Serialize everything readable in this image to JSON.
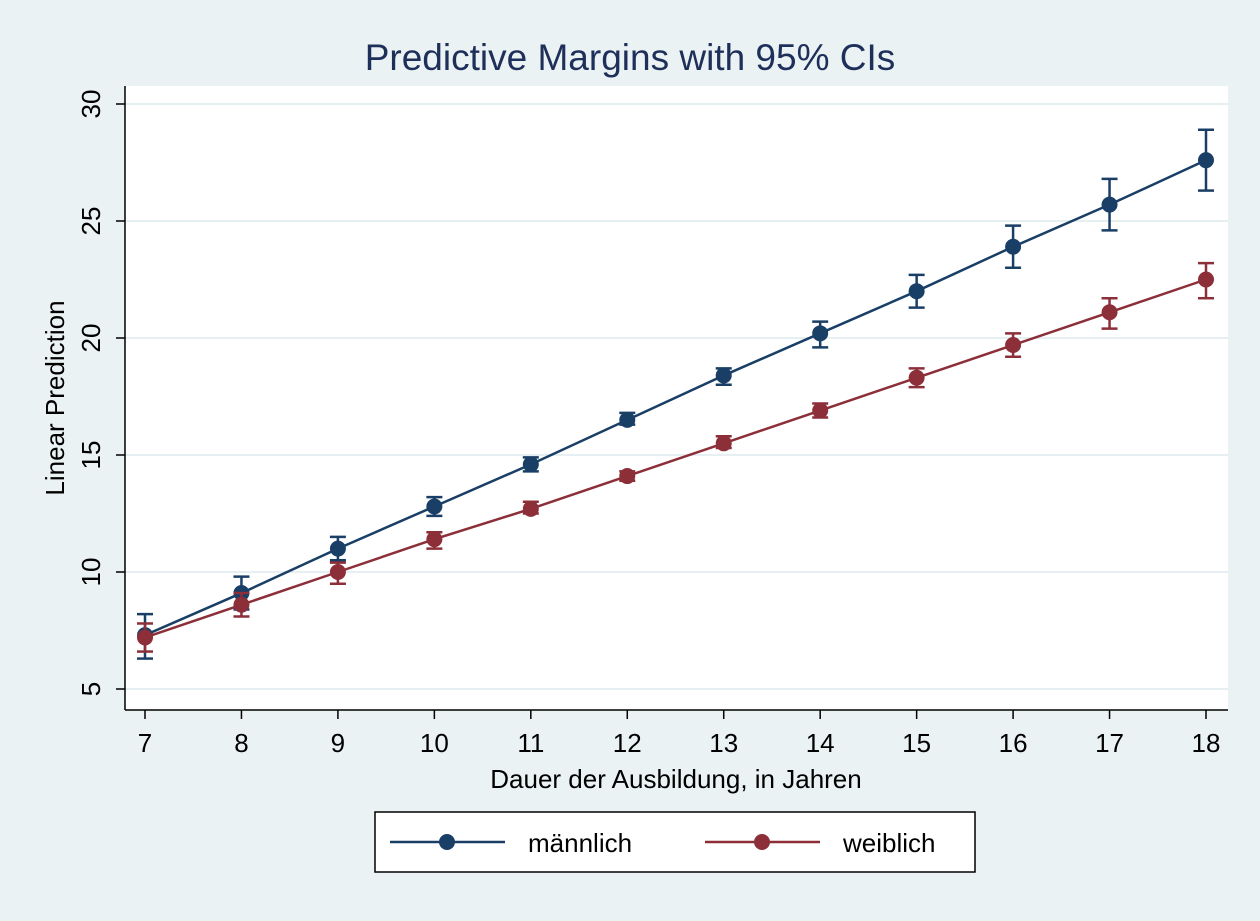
{
  "chart_data": {
    "type": "line",
    "title": "Predictive Margins with 95% CIs",
    "xlabel": "Dauer der Ausbildung, in Jahren",
    "ylabel": "Linear Prediction",
    "x": [
      7,
      8,
      9,
      10,
      11,
      12,
      13,
      14,
      15,
      16,
      17,
      18
    ],
    "xlim": [
      7,
      18
    ],
    "ylim": [
      5,
      30
    ],
    "yticks": [
      5,
      10,
      15,
      20,
      25,
      30
    ],
    "grid": true,
    "legend_position": "bottom",
    "series": [
      {
        "name": "männlich",
        "color": "#1a3f66",
        "values": [
          7.3,
          9.1,
          11.0,
          12.8,
          14.6,
          16.5,
          18.4,
          20.2,
          22.0,
          23.9,
          25.7,
          27.6
        ],
        "ci_low": [
          6.3,
          8.4,
          10.5,
          12.4,
          14.3,
          16.3,
          18.0,
          19.6,
          21.3,
          23.0,
          24.6,
          26.3
        ],
        "ci_high": [
          8.2,
          9.8,
          11.5,
          13.2,
          14.9,
          16.8,
          18.7,
          20.7,
          22.7,
          24.8,
          26.8,
          28.9
        ]
      },
      {
        "name": "weiblich",
        "color": "#8c2f39",
        "values": [
          7.2,
          8.6,
          10.0,
          11.4,
          12.7,
          14.1,
          15.5,
          16.9,
          18.3,
          19.7,
          21.1,
          22.5
        ],
        "ci_low": [
          6.6,
          8.1,
          9.5,
          11.0,
          12.5,
          13.9,
          15.3,
          16.6,
          17.9,
          19.2,
          20.4,
          21.7
        ],
        "ci_high": [
          7.8,
          9.1,
          10.4,
          11.7,
          13.0,
          14.3,
          15.8,
          17.2,
          18.7,
          20.2,
          21.7,
          23.2
        ]
      }
    ]
  }
}
